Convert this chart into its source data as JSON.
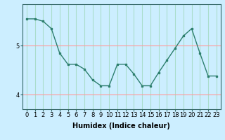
{
  "x": [
    0,
    1,
    2,
    3,
    4,
    5,
    6,
    7,
    8,
    9,
    10,
    11,
    12,
    13,
    14,
    15,
    16,
    17,
    18,
    19,
    20,
    21,
    22,
    23
  ],
  "y": [
    5.55,
    5.55,
    5.5,
    5.35,
    4.85,
    4.62,
    4.62,
    4.52,
    4.3,
    4.18,
    4.18,
    4.62,
    4.62,
    4.42,
    4.18,
    4.18,
    4.45,
    4.7,
    4.95,
    5.2,
    5.35,
    4.85,
    4.38,
    4.38
  ],
  "line_color": "#2d7f6e",
  "marker": "s",
  "markersize": 2,
  "linewidth": 1.0,
  "xlabel": "Humidex (Indice chaleur)",
  "xlabel_fontsize": 7,
  "yticks": [
    4,
    5
  ],
  "ylim": [
    3.7,
    5.85
  ],
  "xlim": [
    -0.5,
    23.5
  ],
  "xtick_labels": [
    "0",
    "1",
    "2",
    "3",
    "4",
    "5",
    "6",
    "7",
    "8",
    "9",
    "10",
    "11",
    "12",
    "13",
    "14",
    "15",
    "16",
    "17",
    "18",
    "19",
    "20",
    "21",
    "22",
    "23"
  ],
  "bg_color": "#cceeff",
  "hgrid_color": "#ff9999",
  "vgrid_color": "#aaddcc",
  "tick_fontsize": 6,
  "spine_color": "#336666"
}
